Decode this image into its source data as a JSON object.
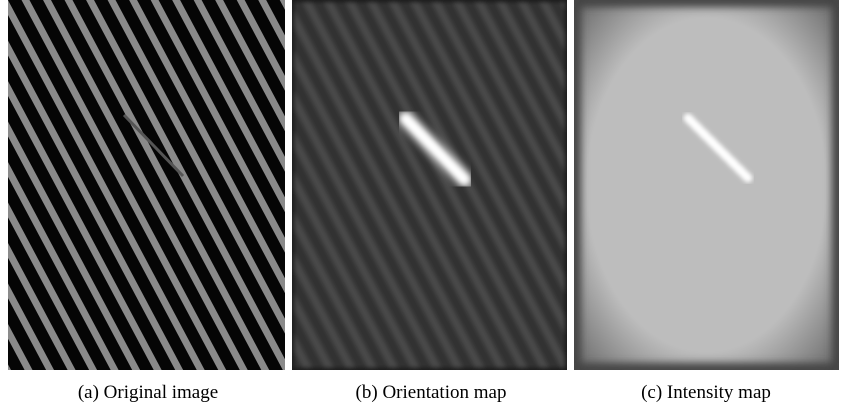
{
  "figure": {
    "panels": [
      {
        "caption": "(a) Original image"
      },
      {
        "caption": "(b) Orientation map"
      },
      {
        "caption": "(c) Intensity map"
      }
    ]
  }
}
